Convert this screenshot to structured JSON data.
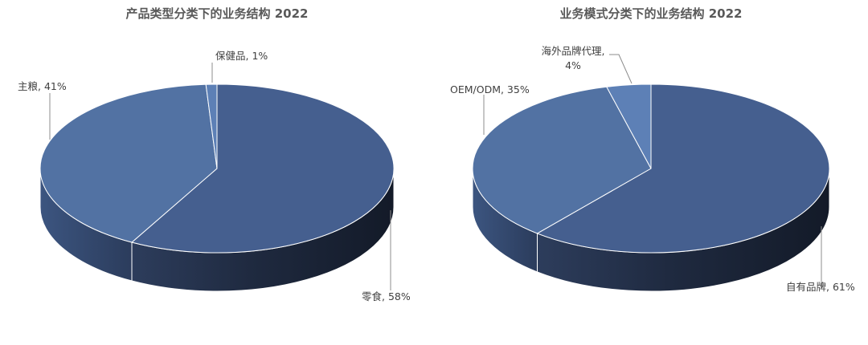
{
  "chart_data": [
    {
      "type": "pie",
      "title": "产品类型分类下的业务结构 2022",
      "slices": [
        {
          "label": "零食",
          "value": 58,
          "display": "零食, 58%",
          "color": "#455f8f"
        },
        {
          "label": "主粮",
          "value": 41,
          "display": "主粮, 41%",
          "color": "#5272a3"
        },
        {
          "label": "保健品",
          "value": 1,
          "display": "保健品, 1%",
          "color": "#5d80b6"
        }
      ]
    },
    {
      "type": "pie",
      "title": "业务模式分类下的业务结构 2022",
      "slices": [
        {
          "label": "自有品牌",
          "value": 61,
          "display": "自有品牌, 61%",
          "color": "#455f8f"
        },
        {
          "label": "OEM/ODM",
          "value": 35,
          "display": "OEM/ODM, 35%",
          "color": "#5272a3"
        },
        {
          "label": "海外品牌代理",
          "value": 4,
          "display_lines": [
            "海外品牌代理,",
            "4%"
          ],
          "color": "#5d80b6"
        }
      ]
    }
  ]
}
